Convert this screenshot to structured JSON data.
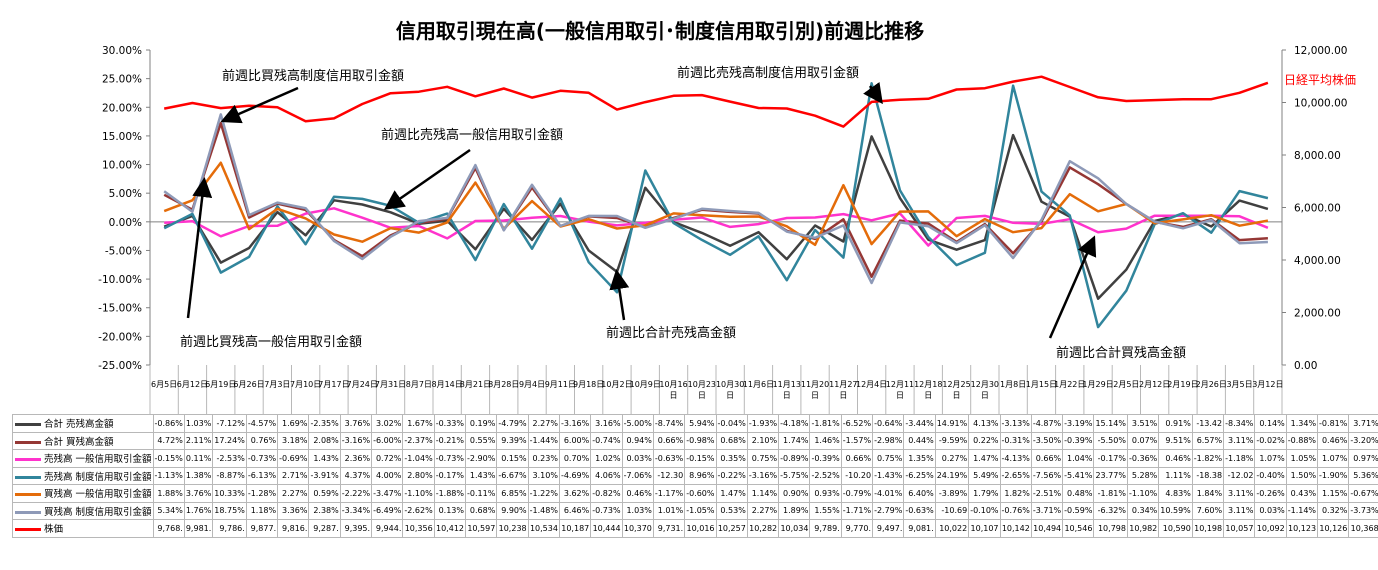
{
  "chart_data": {
    "type": "line",
    "title": "信用取引現在高(一般信用取引･制度信用取引別)前週比推移",
    "left_axis": {
      "ylim": [
        -25,
        30
      ],
      "ticks": [
        "30.00%",
        "25.00%",
        "20.00%",
        "15.00%",
        "10.00%",
        "5.00%",
        "0.00%",
        "-5.00%",
        "-10.00%",
        "-15.00%",
        "-20.00%",
        "-25.00%"
      ]
    },
    "right_axis": {
      "ylim": [
        0,
        12000
      ],
      "ticks": [
        "12,000.00",
        "10,000.00",
        "8,000.00",
        "6,000.00",
        "4,000.00",
        "2,000.00",
        "0.00"
      ]
    },
    "grid": false,
    "categories": [
      "6月5日",
      "6月12日",
      "6月19日",
      "6月26日",
      "7月3日",
      "7月10日",
      "7月17日",
      "7月24日",
      "7月31日",
      "8月7日",
      "8月14日",
      "8月21日",
      "8月28日",
      "9月4日",
      "9月11日",
      "9月18日",
      "10月2日",
      "10月9日",
      "10月16日",
      "10月23日",
      "10月30日",
      "11月6日",
      "11月13日",
      "11月20日",
      "11月27日",
      "12月4日",
      "12月11日",
      "12月18日",
      "12月25日",
      "12月30日",
      "1月8日",
      "1月15日",
      "1月22日",
      "1月29日",
      "2月5日",
      "2月12日",
      "2月19日",
      "2月26日",
      "3月5日",
      "3月12日"
    ],
    "categories_display": [
      "6月5日",
      "6月12日",
      "6月19日",
      "6月26日",
      "7月3日",
      "7月10日",
      "7月17日",
      "7月24日",
      "7月31日",
      "8月7日",
      "8月14日",
      "8月21日",
      "8月28日",
      "9月4日",
      "9月11日",
      "9月18日",
      "10月2日",
      "10月9日",
      [
        "10月16",
        "日"
      ],
      [
        "10月23",
        "日"
      ],
      [
        "10月30",
        "日"
      ],
      "11月6日",
      [
        "11月13",
        "日"
      ],
      [
        "11月20",
        "日"
      ],
      [
        "11月27",
        "日"
      ],
      "12月4日",
      [
        "12月11",
        "日"
      ],
      [
        "12月18",
        "日"
      ],
      [
        "12月25",
        "日"
      ],
      [
        "12月30",
        "日"
      ],
      "1月8日",
      "1月15日",
      "1月22日",
      "1月29日",
      "2月5日",
      "2月12日",
      "2月19日",
      "2月26日",
      "3月5日",
      "3月12日"
    ],
    "series": [
      {
        "name": "合計 売残高金額",
        "color": "#404040",
        "axis": "left",
        "values": [
          -0.86,
          1.03,
          -7.12,
          -4.57,
          1.69,
          -2.35,
          3.76,
          3.02,
          1.67,
          -0.33,
          0.19,
          -4.79,
          2.27,
          -3.16,
          3.16,
          -5.0,
          -8.74,
          5.94,
          -0.04,
          -1.93,
          -4.18,
          -1.81,
          -6.52,
          -0.64,
          -3.44,
          14.91,
          4.13,
          -3.13,
          -4.87,
          -3.19,
          15.14,
          3.51,
          0.91,
          -13.42,
          -8.34,
          0.14,
          1.34,
          -0.81,
          3.71,
          2.25
        ],
        "labels": [
          "-0.86%",
          "1.03%",
          "-7.12%",
          "-4.57%",
          "1.69%",
          "-2.35%",
          "3.76%",
          "3.02%",
          "1.67%",
          "-0.33%",
          "0.19%",
          "-4.79%",
          "2.27%",
          "-3.16%",
          "3.16%",
          "-5.00%",
          "-8.74%",
          "5.94%",
          "-0.04%",
          "-1.93%",
          "-4.18%",
          "-1.81%",
          "-6.52%",
          "-0.64%",
          "-3.44%",
          "14.91%",
          "4.13%",
          "-3.13%",
          "-4.87%",
          "-3.19%",
          "15.14%",
          "3.51%",
          "0.91%",
          "-13.42",
          "-8.34%",
          "0.14%",
          "1.34%",
          "-0.81%",
          "3.71%",
          "2.25%"
        ]
      },
      {
        "name": "合計 買残高金額",
        "color": "#953735",
        "axis": "left",
        "values": [
          4.72,
          2.11,
          17.24,
          0.76,
          3.18,
          2.08,
          -3.16,
          -6.0,
          -2.37,
          -0.21,
          0.55,
          9.39,
          -1.44,
          6.0,
          -0.74,
          0.94,
          0.66,
          -0.98,
          0.68,
          2.1,
          1.74,
          1.46,
          -1.57,
          -2.98,
          0.44,
          -9.59,
          0.22,
          -0.31,
          -3.5,
          -0.39,
          -5.5,
          0.07,
          9.51,
          6.57,
          3.11,
          -0.02,
          -0.88,
          0.46,
          -3.2,
          -2.86
        ],
        "labels": [
          "4.72%",
          "2.11%",
          "17.24%",
          "0.76%",
          "3.18%",
          "2.08%",
          "-3.16%",
          "-6.00%",
          "-2.37%",
          "-0.21%",
          "0.55%",
          "9.39%",
          "-1.44%",
          "6.00%",
          "-0.74%",
          "0.94%",
          "0.66%",
          "-0.98%",
          "0.68%",
          "2.10%",
          "1.74%",
          "1.46%",
          "-1.57%",
          "-2.98%",
          "0.44%",
          "-9.59%",
          "0.22%",
          "-0.31%",
          "-3.50%",
          "-0.39%",
          "-5.50%",
          "0.07%",
          "9.51%",
          "6.57%",
          "3.11%",
          "-0.02%",
          "-0.88%",
          "0.46%",
          "-3.20%",
          "-2.86%"
        ]
      },
      {
        "name": "売残高 一般信用取引金額",
        "color": "#ff33cc",
        "axis": "left",
        "values": [
          -0.15,
          0.11,
          -2.53,
          -0.73,
          -0.69,
          1.43,
          2.36,
          0.72,
          -1.04,
          -0.73,
          -2.9,
          0.15,
          0.23,
          0.7,
          1.02,
          0.03,
          -0.63,
          -0.15,
          0.35,
          0.75,
          -0.89,
          -0.39,
          0.66,
          0.75,
          1.35,
          0.27,
          1.47,
          -4.13,
          0.66,
          1.04,
          -0.17,
          -0.36,
          0.46,
          -1.82,
          -1.18,
          1.07,
          1.05,
          1.07,
          0.97,
          -1.04
        ],
        "labels": [
          "-0.15%",
          "0.11%",
          "-2.53%",
          "-0.73%",
          "-0.69%",
          "1.43%",
          "2.36%",
          "0.72%",
          "-1.04%",
          "-0.73%",
          "-2.90%",
          "0.15%",
          "0.23%",
          "0.70%",
          "1.02%",
          "0.03%",
          "-0.63%",
          "-0.15%",
          "0.35%",
          "0.75%",
          "-0.89%",
          "-0.39%",
          "0.66%",
          "0.75%",
          "1.35%",
          "0.27%",
          "1.47%",
          "-4.13%",
          "0.66%",
          "1.04%",
          "-0.17%",
          "-0.36%",
          "0.46%",
          "-1.82%",
          "-1.18%",
          "1.07%",
          "1.05%",
          "1.07%",
          "0.97%",
          "-1.04%"
        ]
      },
      {
        "name": "売残高 制度信用取引金額",
        "color": "#31859c",
        "axis": "left",
        "values": [
          -1.13,
          1.38,
          -8.87,
          -6.13,
          2.71,
          -3.91,
          4.37,
          4.0,
          2.8,
          -0.17,
          1.43,
          -6.67,
          3.1,
          -4.69,
          4.06,
          -7.06,
          -12.3,
          8.96,
          -0.22,
          -3.16,
          -5.75,
          -2.52,
          -10.2,
          -1.43,
          -6.25,
          24.19,
          5.49,
          -2.65,
          -7.56,
          -5.41,
          23.77,
          5.28,
          1.11,
          -18.38,
          -12.02,
          -0.4,
          1.5,
          -1.9,
          5.36,
          4.14
        ],
        "labels": [
          "-1.13%",
          "1.38%",
          "-8.87%",
          "-6.13%",
          "2.71%",
          "-3.91%",
          "4.37%",
          "4.00%",
          "2.80%",
          "-0.17%",
          "1.43%",
          "-6.67%",
          "3.10%",
          "-4.69%",
          "4.06%",
          "-7.06%",
          "-12.30",
          "8.96%",
          "-0.22%",
          "-3.16%",
          "-5.75%",
          "-2.52%",
          "-10.20",
          "-1.43%",
          "-6.25%",
          "24.19%",
          "5.49%",
          "-2.65%",
          "-7.56%",
          "-5.41%",
          "23.77%",
          "5.28%",
          "1.11%",
          "-18.38",
          "-12.02",
          "-0.40%",
          "1.50%",
          "-1.90%",
          "5.36%",
          "4.14%"
        ]
      },
      {
        "name": "買残高 一般信用取引金額",
        "color": "#e46c0a",
        "axis": "left",
        "values": [
          1.88,
          3.76,
          10.33,
          -1.28,
          2.27,
          0.59,
          -2.22,
          -3.47,
          -1.1,
          -1.88,
          -0.11,
          6.85,
          -1.22,
          3.62,
          -0.82,
          0.46,
          -1.17,
          -0.6,
          1.47,
          1.14,
          0.9,
          0.93,
          -0.79,
          -4.01,
          6.4,
          -3.89,
          1.79,
          1.82,
          -2.51,
          0.48,
          -1.81,
          -1.1,
          4.83,
          1.84,
          3.11,
          -0.26,
          0.43,
          1.15,
          -0.67,
          0.21
        ],
        "labels": [
          "1.88%",
          "3.76%",
          "10.33%",
          "-1.28%",
          "2.27%",
          "0.59%",
          "-2.22%",
          "-3.47%",
          "-1.10%",
          "-1.88%",
          "-0.11%",
          "6.85%",
          "-1.22%",
          "3.62%",
          "-0.82%",
          "0.46%",
          "-1.17%",
          "-0.60%",
          "1.47%",
          "1.14%",
          "0.90%",
          "0.93%",
          "-0.79%",
          "-4.01%",
          "6.40%",
          "-3.89%",
          "1.79%",
          "1.82%",
          "-2.51%",
          "0.48%",
          "-1.81%",
          "-1.10%",
          "4.83%",
          "1.84%",
          "3.11%",
          "-0.26%",
          "0.43%",
          "1.15%",
          "-0.67%",
          "0.21%"
        ]
      },
      {
        "name": "買残高 制度信用取引金額",
        "color": "#8e9ab8",
        "axis": "left",
        "values": [
          5.34,
          1.76,
          18.75,
          1.18,
          3.36,
          2.38,
          -3.34,
          -6.49,
          -2.62,
          0.13,
          0.68,
          9.9,
          -1.48,
          6.46,
          -0.73,
          1.03,
          1.01,
          -1.05,
          0.53,
          2.27,
          1.89,
          1.55,
          -1.71,
          -2.79,
          -0.63,
          -10.69,
          -0.1,
          -0.76,
          -3.71,
          -0.59,
          -6.32,
          0.34,
          10.59,
          7.6,
          3.11,
          0.03,
          -1.14,
          0.32,
          -3.73,
          -3.52
        ],
        "labels": [
          "5.34%",
          "1.76%",
          "18.75%",
          "1.18%",
          "3.36%",
          "2.38%",
          "-3.34%",
          "-6.49%",
          "-2.62%",
          "0.13%",
          "0.68%",
          "9.90%",
          "-1.48%",
          "6.46%",
          "-0.73%",
          "1.03%",
          "1.01%",
          "-1.05%",
          "0.53%",
          "2.27%",
          "1.89%",
          "1.55%",
          "-1.71%",
          "-2.79%",
          "-0.63%",
          "-10.69",
          "-0.10%",
          "-0.76%",
          "-3.71%",
          "-0.59%",
          "-6.32%",
          "0.34%",
          "10.59%",
          "7.60%",
          "3.11%",
          "0.03%",
          "-1.14%",
          "0.32%",
          "-3.73%",
          "-3.52%"
        ]
      },
      {
        "name": "株価",
        "color": "#ff0000",
        "axis": "right",
        "values": [
          9768,
          9981,
          9786,
          9877,
          9816,
          9287,
          9395,
          9944,
          10356,
          10412,
          10597,
          10238,
          10534,
          10187,
          10444,
          10370,
          9731,
          10016,
          10257,
          10282,
          10034,
          9789,
          9770,
          9497,
          9081,
          10022,
          10107,
          10142,
          10494,
          10546,
          10798,
          10982,
          10590,
          10198,
          10057,
          10092,
          10123,
          10126,
          10368,
          10751
        ],
        "labels": [
          "9,768.",
          "9,981.",
          "9,786.",
          "9,877.",
          "9,816.",
          "9,287.",
          "9,395.",
          "9,944.",
          "10,356",
          "10,412",
          "10,597",
          "10,238",
          "10,534",
          "10,187",
          "10,444",
          "10,370",
          "9,731.",
          "10,016",
          "10,257",
          "10,282",
          "10,034",
          "9,789.",
          "9,770.",
          "9,497.",
          "9,081.",
          "10,022",
          "10,107",
          "10,142",
          "10,494",
          "10,546",
          "10,798",
          "10,982",
          "10,590",
          "10,198",
          "10,057",
          "10,092",
          "10,123",
          "10,126",
          "10,368",
          "10,751"
        ]
      }
    ],
    "annotations": [
      {
        "text": "前週比買残高制度信用取引金額"
      },
      {
        "text": "前週比売残高一般信用取引金額"
      },
      {
        "text": "前週比売残高制度信用取引金額"
      },
      {
        "text": "前週比買残高一般信用取引金額"
      },
      {
        "text": "前週比合計売残高金額"
      },
      {
        "text": "前週比合計買残高金額"
      }
    ],
    "right_series_label": "日経平均株価"
  }
}
